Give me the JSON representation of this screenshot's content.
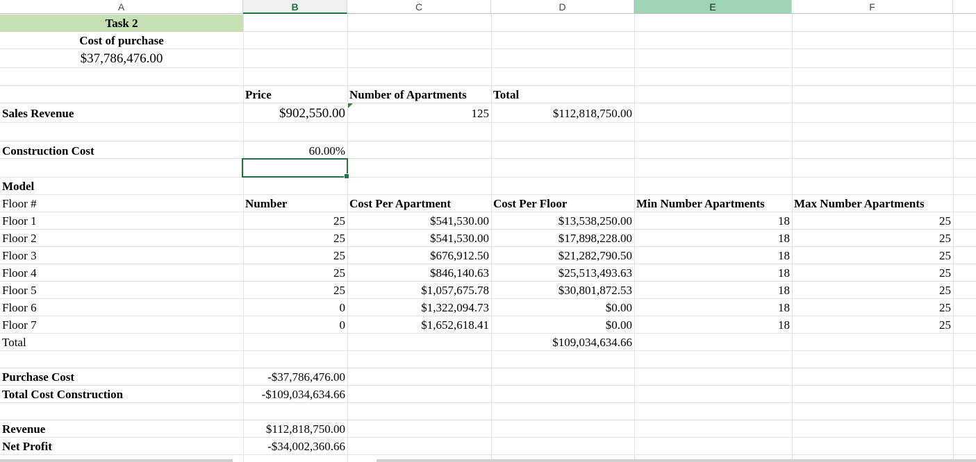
{
  "columns": [
    "A",
    "B",
    "C",
    "D",
    "E",
    "F"
  ],
  "task": {
    "title": "Task 2",
    "cost_label": "Cost of purchase",
    "cost_value": "$37,786,476.00"
  },
  "sales": {
    "price_header": "Price",
    "apartments_header": "Number of Apartments",
    "total_header": "Total",
    "label": "Sales Revenue",
    "price": "$902,550.00",
    "apartments": "125",
    "total": "$112,818,750.00"
  },
  "construction": {
    "label": "Construction Cost",
    "percent": "60.00%"
  },
  "model": {
    "label": "Model",
    "headers": {
      "floor": "Floor #",
      "number": "Number",
      "cost_per_apartment": "Cost Per Apartment",
      "cost_per_floor": "Cost Per Floor",
      "min_apartments": "Min Number Apartments",
      "max_apartments": "Max Number Apartments"
    },
    "rows": [
      {
        "floor": "Floor 1",
        "number": "25",
        "cpa": "$541,530.00",
        "cpf": "$13,538,250.00",
        "min": "18",
        "max": "25"
      },
      {
        "floor": "Floor 2",
        "number": "25",
        "cpa": "$541,530.00",
        "cpf": "$17,898,228.00",
        "min": "18",
        "max": "25"
      },
      {
        "floor": "Floor 3",
        "number": "25",
        "cpa": "$676,912.50",
        "cpf": "$21,282,790.50",
        "min": "18",
        "max": "25"
      },
      {
        "floor": "Floor 4",
        "number": "25",
        "cpa": "$846,140.63",
        "cpf": "$25,513,493.63",
        "min": "18",
        "max": "25"
      },
      {
        "floor": "Floor 5",
        "number": "25",
        "cpa": "$1,057,675.78",
        "cpf": "$30,801,872.53",
        "min": "18",
        "max": "25"
      },
      {
        "floor": "Floor 6",
        "number": "0",
        "cpa": "$1,322,094.73",
        "cpf": "$0.00",
        "min": "18",
        "max": "25"
      },
      {
        "floor": "Floor 7",
        "number": "0",
        "cpa": "$1,652,618.41",
        "cpf": "$0.00",
        "min": "18",
        "max": "25"
      }
    ],
    "total_label": "Total",
    "total_value": "$109,034,634.66"
  },
  "summary": {
    "purchase_cost_label": "Purchase Cost",
    "purchase_cost": "-$37,786,476.00",
    "total_construction_label": "Total Cost Construction",
    "total_construction": "-$109,034,634.66",
    "revenue_label": "Revenue",
    "revenue": "$112,818,750.00",
    "net_profit_label": "Net Profit",
    "net_profit": "-$34,002,360.66"
  },
  "colors": {
    "accent": "#217346",
    "task_fill": "#c6e0b4",
    "selected_column": "#9fd5b7"
  }
}
